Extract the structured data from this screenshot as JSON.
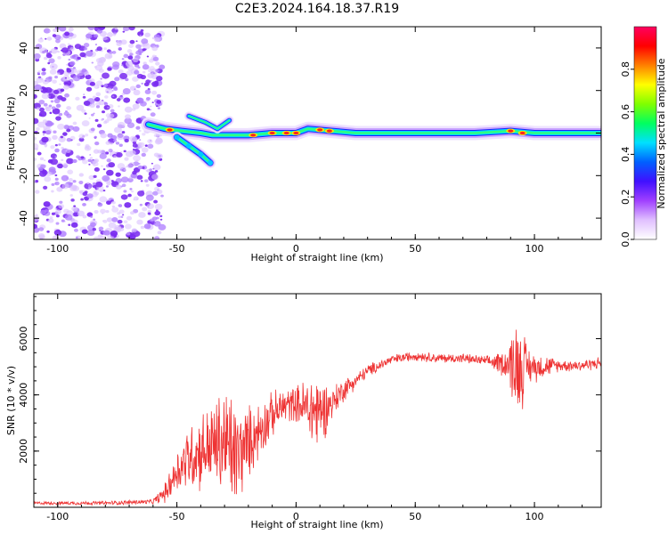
{
  "title": "C2E3.2024.164.18.37.R19",
  "colors": {
    "snr_line": "#ee3333",
    "ridge": "#1133ff",
    "noise": "#7a2cf0",
    "axis": "#000000"
  },
  "chart_data": [
    {
      "type": "heatmap",
      "id": "spectrogram",
      "title": "C2E3.2024.164.18.37.R19",
      "xlabel": "Height of straight line (km)",
      "ylabel": "Frequency (Hz)",
      "xlim": [
        -110,
        128
      ],
      "ylim": [
        -50,
        50
      ],
      "xticks": [
        -100,
        -50,
        0,
        50,
        100
      ],
      "yticks": [
        -40,
        -20,
        0,
        20,
        40
      ],
      "colorbar": {
        "label": "Normalized spectral amplitude",
        "range": [
          0,
          1
        ],
        "ticks": [
          0.0,
          0.2,
          0.4,
          0.6,
          0.8
        ],
        "tick_labels": [
          "0.0",
          "0.2",
          "0.4",
          "0.6",
          "0.8"
        ],
        "colormap": [
          "#ffffff",
          "#e0c0ff",
          "#a040ff",
          "#4010ff",
          "#0060ff",
          "#00e0ff",
          "#00ff60",
          "#80ff00",
          "#ffff00",
          "#ff8000",
          "#ff0000",
          "#ff0060"
        ]
      },
      "description_features": {
        "noise_region_x": [
          -110,
          -60
        ],
        "main_ridge": [
          [
            -62,
            4
          ],
          [
            -55,
            2
          ],
          [
            -48,
            1
          ],
          [
            -40,
            0
          ],
          [
            -35,
            -1
          ],
          [
            -30,
            -1
          ],
          [
            -20,
            -1
          ],
          [
            -10,
            0
          ],
          [
            0,
            0
          ],
          [
            5,
            2
          ],
          [
            15,
            1
          ],
          [
            25,
            0
          ],
          [
            50,
            0
          ],
          [
            75,
            0
          ],
          [
            90,
            1
          ],
          [
            100,
            0
          ],
          [
            128,
            0
          ]
        ],
        "secondary_branch": [
          [
            -50,
            -2
          ],
          [
            -45,
            -6
          ],
          [
            -40,
            -10
          ],
          [
            -36,
            -14
          ]
        ],
        "upper_branch": [
          [
            -45,
            8
          ],
          [
            -38,
            5
          ],
          [
            -33,
            2
          ],
          [
            -28,
            6
          ]
        ]
      }
    },
    {
      "type": "line",
      "id": "snr",
      "xlabel": "Height of straight line (km)",
      "ylabel": "SNR (10 * v/v)",
      "xlim": [
        -110,
        128
      ],
      "ylim": [
        0,
        7600
      ],
      "xticks": [
        -100,
        -50,
        0,
        50,
        100
      ],
      "yticks": [
        2000,
        4000,
        6000
      ],
      "envelope": [
        {
          "x": -110,
          "y": 150
        },
        {
          "x": -80,
          "y": 150
        },
        {
          "x": -60,
          "y": 200
        },
        {
          "x": -55,
          "y": 500
        },
        {
          "x": -50,
          "y": 1300
        },
        {
          "x": -45,
          "y": 1800
        },
        {
          "x": -40,
          "y": 2000
        },
        {
          "x": -35,
          "y": 2200
        },
        {
          "x": -30,
          "y": 2300
        },
        {
          "x": -25,
          "y": 1800
        },
        {
          "x": -20,
          "y": 2300
        },
        {
          "x": -15,
          "y": 2800
        },
        {
          "x": -10,
          "y": 3300
        },
        {
          "x": -5,
          "y": 3600
        },
        {
          "x": 0,
          "y": 3700
        },
        {
          "x": 5,
          "y": 3500
        },
        {
          "x": 10,
          "y": 3400
        },
        {
          "x": 15,
          "y": 3700
        },
        {
          "x": 20,
          "y": 4200
        },
        {
          "x": 25,
          "y": 4500
        },
        {
          "x": 30,
          "y": 4850
        },
        {
          "x": 40,
          "y": 5250
        },
        {
          "x": 50,
          "y": 5400
        },
        {
          "x": 60,
          "y": 5300
        },
        {
          "x": 70,
          "y": 5300
        },
        {
          "x": 80,
          "y": 5200
        },
        {
          "x": 90,
          "y": 5100
        },
        {
          "x": 95,
          "y": 5000
        },
        {
          "x": 100,
          "y": 5000
        },
        {
          "x": 110,
          "y": 5050
        },
        {
          "x": 120,
          "y": 5050
        },
        {
          "x": 128,
          "y": 5150
        }
      ],
      "noise_amplitude": [
        {
          "x": -110,
          "y": 60
        },
        {
          "x": -60,
          "y": 100
        },
        {
          "x": -55,
          "y": 400
        },
        {
          "x": -45,
          "y": 1400
        },
        {
          "x": -35,
          "y": 1800
        },
        {
          "x": -28,
          "y": 2600
        },
        {
          "x": -20,
          "y": 1500
        },
        {
          "x": -10,
          "y": 900
        },
        {
          "x": 0,
          "y": 700
        },
        {
          "x": 8,
          "y": 1800
        },
        {
          "x": 15,
          "y": 700
        },
        {
          "x": 25,
          "y": 300
        },
        {
          "x": 40,
          "y": 200
        },
        {
          "x": 80,
          "y": 200
        },
        {
          "x": 88,
          "y": 600
        },
        {
          "x": 93,
          "y": 2200
        },
        {
          "x": 98,
          "y": 700
        },
        {
          "x": 110,
          "y": 250
        },
        {
          "x": 128,
          "y": 250
        }
      ]
    }
  ]
}
